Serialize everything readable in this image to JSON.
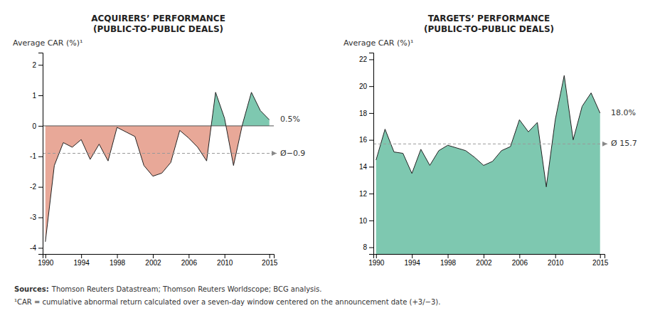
{
  "chart_data": [
    {
      "type": "area",
      "title": "ACQUIRERS’ PERFORMANCE\n(PUBLIC-TO-PUBLIC DEALS)",
      "ylabel": "Average CAR (%)¹",
      "x": [
        1990,
        1991,
        1992,
        1993,
        1994,
        1995,
        1996,
        1997,
        1998,
        1999,
        2000,
        2001,
        2002,
        2003,
        2004,
        2005,
        2006,
        2007,
        2008,
        2009,
        2010,
        2011,
        2012,
        2013,
        2014,
        2015
      ],
      "values": [
        -3.8,
        -1.3,
        -0.55,
        -0.7,
        -0.45,
        -1.1,
        -0.6,
        -1.15,
        -0.05,
        -0.2,
        -0.35,
        -1.3,
        -1.65,
        -1.55,
        -1.2,
        -0.15,
        -0.4,
        -0.7,
        -1.15,
        1.1,
        0.25,
        -1.3,
        0.05,
        1.1,
        0.5,
        0.2
      ],
      "colors": [
        "#e8a898",
        "#7ec8b0"
      ],
      "average": -0.9,
      "average_label": "Ø−0.9",
      "annotations": [
        "0.5%"
      ],
      "xlim": [
        1989.7,
        2015.5
      ],
      "xticks": [
        1990,
        1994,
        1998,
        2002,
        2006,
        2010,
        2015
      ],
      "ylim": [
        -4.2,
        2.4
      ],
      "yticks": [
        -4,
        -3,
        -2,
        -1,
        0,
        1,
        2
      ],
      "grid": false
    },
    {
      "type": "area",
      "title": "TARGETS’ PERFORMANCE\n(PUBLIC-TO-PUBLIC DEALS)",
      "ylabel": "Average CAR (%)¹",
      "x": [
        1990,
        1991,
        1992,
        1993,
        1994,
        1995,
        1996,
        1997,
        1998,
        1999,
        2000,
        2001,
        2002,
        2003,
        2004,
        2005,
        2006,
        2007,
        2008,
        2009,
        2010,
        2011,
        2012,
        2013,
        2014,
        2015
      ],
      "values": [
        14.5,
        16.8,
        15.1,
        15.0,
        13.5,
        15.3,
        14.1,
        15.2,
        15.6,
        15.4,
        15.2,
        14.7,
        14.1,
        14.4,
        15.2,
        15.5,
        17.5,
        16.6,
        17.3,
        12.5,
        17.5,
        20.8,
        16.0,
        18.5,
        19.5,
        18.0
      ],
      "color": "#7ec8b0",
      "average": 15.7,
      "average_label": "Ø 15.7",
      "annotations": [
        "18.0%"
      ],
      "xlim": [
        1989.7,
        2015.5
      ],
      "xticks": [
        1990,
        1994,
        1998,
        2002,
        2006,
        2010,
        2015
      ],
      "ylim": [
        7.5,
        22.5
      ],
      "yticks": [
        8,
        10,
        12,
        14,
        16,
        18,
        20,
        22
      ],
      "grid": false
    }
  ],
  "source_label": "Sources:",
  "source": "Thomson Reuters Datastream; Thomson Reuters Worldscope; BCG analysis.",
  "footnote": "¹CAR = cumulative abnormal return calculated over a seven-day window centered on the announcement date (+3/−3)."
}
